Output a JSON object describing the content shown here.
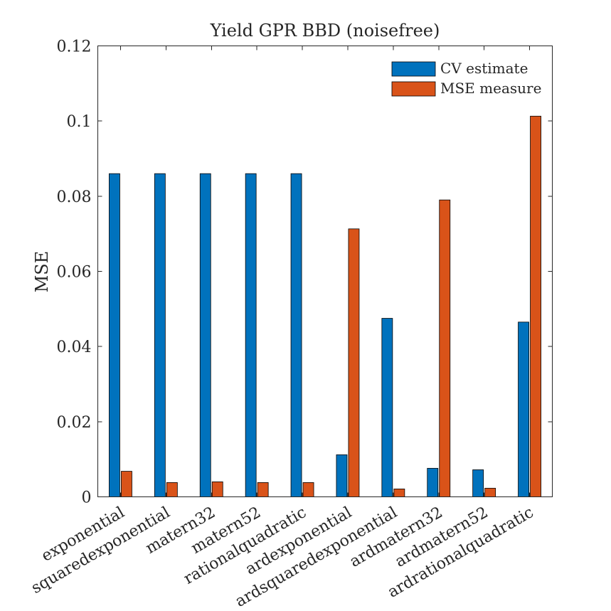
{
  "chart_data": {
    "type": "bar",
    "title": "Yield GPR BBD (noisefree)",
    "xlabel": "",
    "ylabel": "MSE",
    "ylim": [
      0,
      0.12
    ],
    "yticks": [
      "0",
      "0.02",
      "0.04",
      "0.06",
      "0.08",
      "0.1",
      "0.12"
    ],
    "yticks_values": [
      0,
      0.02,
      0.04,
      0.06,
      0.08,
      0.1,
      0.12
    ],
    "grid": false,
    "legend_position": "top-right",
    "categories": [
      "exponential",
      "squaredexponential",
      "matern32",
      "matern52",
      "rationalquadratic",
      "ardexponential",
      "ardsquaredexponential",
      "ardmatern32",
      "ardmatern52",
      "ardrationalquadratic"
    ],
    "series": [
      {
        "name": "CV estimate",
        "color": "#0072BD",
        "values": [
          0.086,
          0.086,
          0.086,
          0.086,
          0.086,
          0.0112,
          0.0475,
          0.0076,
          0.0072,
          0.0465
        ]
      },
      {
        "name": "MSE measure",
        "color": "#D95319",
        "values": [
          0.0068,
          0.0038,
          0.004,
          0.0038,
          0.0038,
          0.0713,
          0.0021,
          0.079,
          0.0023,
          0.1013
        ]
      }
    ]
  }
}
